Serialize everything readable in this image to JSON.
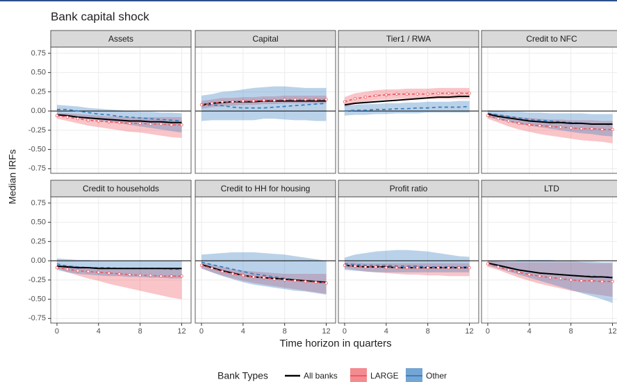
{
  "chart_data": {
    "type": "line",
    "title": "Bank capital shock",
    "xlabel": "Time horizon in quarters",
    "ylabel": "Median IRFs",
    "legend_title": "Bank Types",
    "grid": true,
    "hline": 0,
    "x": [
      0,
      1,
      2,
      3,
      4,
      5,
      6,
      7,
      8,
      9,
      10,
      11,
      12
    ],
    "xlim": [
      -0.6,
      12.9
    ],
    "xticks": [
      0,
      4,
      8,
      12
    ],
    "ylim": [
      -0.81,
      0.83
    ],
    "yticks": [
      {
        "value": -0.75,
        "label": "-0.75"
      },
      {
        "value": -0.5,
        "label": "-0.50"
      },
      {
        "value": -0.25,
        "label": "-0.25"
      },
      {
        "value": 0,
        "label": "0.00"
      },
      {
        "value": 0.25,
        "label": "0.25"
      },
      {
        "value": 0.5,
        "label": "0.50"
      },
      {
        "value": 0.75,
        "label": "0.75"
      }
    ],
    "series": [
      {
        "name": "All banks",
        "color": "#000000"
      },
      {
        "name": "LARGE",
        "color": "#ee5a62"
      },
      {
        "name": "Other",
        "color": "#3a7fc1"
      }
    ],
    "panels": [
      {
        "title": "Assets",
        "series": [
          {
            "values": [
              -0.05,
              -0.06,
              -0.08,
              -0.09,
              -0.1,
              -0.11,
              -0.12,
              -0.13,
              -0.13,
              -0.14,
              -0.14,
              -0.15,
              -0.15
            ]
          },
          {
            "values": [
              -0.06,
              -0.08,
              -0.1,
              -0.12,
              -0.13,
              -0.14,
              -0.15,
              -0.16,
              -0.16,
              -0.17,
              -0.17,
              -0.18,
              -0.18
            ],
            "lower": [
              -0.1,
              -0.13,
              -0.16,
              -0.19,
              -0.21,
              -0.23,
              -0.25,
              -0.27,
              -0.28,
              -0.3,
              -0.32,
              -0.34,
              -0.35
            ],
            "upper": [
              -0.02,
              -0.03,
              -0.04,
              -0.05,
              -0.06,
              -0.07,
              -0.07,
              -0.08,
              -0.08,
              -0.08,
              -0.08,
              -0.08,
              -0.08
            ]
          },
          {
            "values": [
              0.02,
              0.02,
              0,
              -0.02,
              -0.04,
              -0.05,
              -0.07,
              -0.08,
              -0.09,
              -0.1,
              -0.11,
              -0.12,
              -0.13
            ],
            "lower": [
              -0.05,
              -0.06,
              -0.08,
              -0.1,
              -0.12,
              -0.14,
              -0.16,
              -0.18,
              -0.2,
              -0.22,
              -0.24,
              -0.26,
              -0.28
            ],
            "upper": [
              0.08,
              0.07,
              0.06,
              0.04,
              0.03,
              0.02,
              0.01,
              0,
              -0.01,
              -0.01,
              -0.02,
              -0.02,
              -0.03
            ]
          }
        ]
      },
      {
        "title": "Capital",
        "series": [
          {
            "values": [
              0.08,
              0.1,
              0.11,
              0.12,
              0.12,
              0.12,
              0.13,
              0.13,
              0.13,
              0.13,
              0.13,
              0.13,
              0.13
            ]
          },
          {
            "values": [
              0.08,
              0.1,
              0.12,
              0.12,
              0.13,
              0.13,
              0.14,
              0.14,
              0.15,
              0.15,
              0.15,
              0.15,
              0.15
            ],
            "lower": [
              0.03,
              0.05,
              0.06,
              0.07,
              0.08,
              0.08,
              0.09,
              0.09,
              0.1,
              0.1,
              0.1,
              0.1,
              0.1
            ],
            "upper": [
              0.13,
              0.15,
              0.17,
              0.17,
              0.18,
              0.18,
              0.19,
              0.19,
              0.2,
              0.2,
              0.2,
              0.2,
              0.2
            ]
          },
          {
            "values": [
              0.07,
              0.08,
              0.07,
              0.05,
              0.04,
              0.04,
              0.04,
              0.05,
              0.06,
              0.07,
              0.08,
              0.09,
              0.1
            ],
            "lower": [
              -0.13,
              -0.12,
              -0.12,
              -0.12,
              -0.12,
              -0.12,
              -0.1,
              -0.1,
              -0.11,
              -0.12,
              -0.12,
              -0.13,
              -0.13
            ],
            "upper": [
              0.2,
              0.22,
              0.25,
              0.26,
              0.28,
              0.3,
              0.31,
              0.32,
              0.32,
              0.31,
              0.3,
              0.3,
              0.3
            ]
          }
        ]
      },
      {
        "title": "Tier1 / RWA",
        "series": [
          {
            "values": [
              0.08,
              0.1,
              0.11,
              0.12,
              0.13,
              0.14,
              0.15,
              0.16,
              0.17,
              0.18,
              0.18,
              0.19,
              0.19
            ]
          },
          {
            "values": [
              0.12,
              0.16,
              0.18,
              0.2,
              0.21,
              0.22,
              0.22,
              0.22,
              0.22,
              0.23,
              0.23,
              0.23,
              0.23
            ],
            "lower": [
              0.05,
              0.09,
              0.12,
              0.14,
              0.15,
              0.16,
              0.16,
              0.16,
              0.16,
              0.16,
              0.16,
              0.16,
              0.16
            ],
            "upper": [
              0.18,
              0.23,
              0.25,
              0.27,
              0.28,
              0.28,
              0.29,
              0.29,
              0.29,
              0.3,
              0.3,
              0.3,
              0.3
            ]
          },
          {
            "values": [
              0,
              0.01,
              0.01,
              0.02,
              0.02,
              0.03,
              0.03,
              0.04,
              0.04,
              0.05,
              0.05,
              0.05,
              0.06
            ],
            "lower": [
              -0.06,
              -0.05,
              -0.05,
              -0.04,
              -0.04,
              -0.03,
              -0.03,
              -0.03,
              -0.02,
              -0.02,
              -0.02,
              -0.02,
              -0.02
            ],
            "upper": [
              0.07,
              0.08,
              0.09,
              0.09,
              0.1,
              0.1,
              0.11,
              0.11,
              0.12,
              0.12,
              0.12,
              0.13,
              0.13
            ]
          }
        ]
      },
      {
        "title": "Credit to NFC",
        "series": [
          {
            "values": [
              -0.04,
              -0.07,
              -0.09,
              -0.11,
              -0.13,
              -0.14,
              -0.15,
              -0.15,
              -0.16,
              -0.16,
              -0.17,
              -0.17,
              -0.17
            ]
          },
          {
            "values": [
              -0.06,
              -0.1,
              -0.13,
              -0.16,
              -0.18,
              -0.19,
              -0.2,
              -0.21,
              -0.22,
              -0.23,
              -0.23,
              -0.24,
              -0.24
            ],
            "lower": [
              -0.1,
              -0.15,
              -0.2,
              -0.24,
              -0.27,
              -0.3,
              -0.32,
              -0.34,
              -0.36,
              -0.38,
              -0.39,
              -0.4,
              -0.42
            ],
            "upper": [
              -0.02,
              -0.04,
              -0.06,
              -0.08,
              -0.09,
              -0.1,
              -0.11,
              -0.11,
              -0.12,
              -0.12,
              -0.12,
              -0.13,
              -0.13
            ]
          },
          {
            "values": [
              -0.03,
              -0.05,
              -0.07,
              -0.09,
              -0.11,
              -0.12,
              -0.13,
              -0.14,
              -0.15,
              -0.16,
              -0.17,
              -0.17,
              -0.18
            ],
            "lower": [
              -0.08,
              -0.11,
              -0.14,
              -0.17,
              -0.19,
              -0.21,
              -0.23,
              -0.25,
              -0.27,
              -0.29,
              -0.3,
              -0.32,
              -0.33
            ],
            "upper": [
              0.01,
              0,
              -0.01,
              -0.01,
              -0.02,
              -0.02,
              -0.03,
              -0.03,
              -0.03,
              -0.03,
              -0.04,
              -0.04,
              -0.04
            ]
          }
        ]
      },
      {
        "title": "Credit to households",
        "series": [
          {
            "values": [
              -0.07,
              -0.08,
              -0.09,
              -0.09,
              -0.1,
              -0.1,
              -0.1,
              -0.1,
              -0.1,
              -0.1,
              -0.1,
              -0.1,
              -0.1
            ]
          },
          {
            "values": [
              -0.09,
              -0.11,
              -0.13,
              -0.14,
              -0.15,
              -0.16,
              -0.17,
              -0.18,
              -0.19,
              -0.19,
              -0.2,
              -0.2,
              -0.2
            ],
            "lower": [
              -0.1,
              -0.15,
              -0.19,
              -0.23,
              -0.26,
              -0.3,
              -0.33,
              -0.36,
              -0.39,
              -0.42,
              -0.45,
              -0.48,
              -0.5
            ],
            "upper": [
              -0.05,
              -0.06,
              -0.07,
              -0.08,
              -0.08,
              -0.09,
              -0.09,
              -0.1,
              -0.1,
              -0.1,
              -0.1,
              -0.11,
              -0.11
            ]
          },
          {
            "values": [
              -0.04,
              -0.07,
              -0.08,
              -0.09,
              -0.09,
              -0.09,
              -0.1,
              -0.1,
              -0.1,
              -0.1,
              -0.1,
              -0.11,
              -0.11
            ],
            "lower": [
              -0.12,
              -0.15,
              -0.17,
              -0.18,
              -0.19,
              -0.2,
              -0.2,
              -0.21,
              -0.21,
              -0.22,
              -0.22,
              -0.23,
              -0.23
            ],
            "upper": [
              0.03,
              0.02,
              0.01,
              0.01,
              0,
              0,
              0,
              0,
              0,
              0,
              0,
              0,
              0
            ]
          }
        ]
      },
      {
        "title": "Credit to HH for housing",
        "series": [
          {
            "values": [
              -0.05,
              -0.09,
              -0.13,
              -0.16,
              -0.19,
              -0.21,
              -0.22,
              -0.23,
              -0.24,
              -0.25,
              -0.26,
              -0.27,
              -0.28
            ]
          },
          {
            "values": [
              -0.06,
              -0.1,
              -0.14,
              -0.17,
              -0.19,
              -0.21,
              -0.22,
              -0.24,
              -0.25,
              -0.26,
              -0.27,
              -0.28,
              -0.29
            ],
            "lower": [
              -0.1,
              -0.15,
              -0.19,
              -0.23,
              -0.26,
              -0.29,
              -0.31,
              -0.33,
              -0.35,
              -0.37,
              -0.39,
              -0.41,
              -0.43
            ],
            "upper": [
              -0.02,
              -0.05,
              -0.08,
              -0.11,
              -0.13,
              -0.14,
              -0.15,
              -0.16,
              -0.17,
              -0.17,
              -0.17,
              -0.17,
              -0.17
            ]
          },
          {
            "values": [
              -0.02,
              -0.05,
              -0.08,
              -0.11,
              -0.14,
              -0.17,
              -0.19,
              -0.21,
              -0.23,
              -0.25,
              -0.27,
              -0.28,
              -0.29
            ],
            "lower": [
              -0.1,
              -0.15,
              -0.2,
              -0.24,
              -0.28,
              -0.31,
              -0.33,
              -0.35,
              -0.37,
              -0.39,
              -0.4,
              -0.42,
              -0.44
            ],
            "upper": [
              0.08,
              0.09,
              0.1,
              0.11,
              0.11,
              0.11,
              0.1,
              0.09,
              0.08,
              0.06,
              0.04,
              0.02,
              0
            ]
          }
        ]
      },
      {
        "title": "Profit ratio",
        "series": [
          {
            "values": [
              -0.06,
              -0.07,
              -0.08,
              -0.08,
              -0.08,
              -0.09,
              -0.09,
              -0.09,
              -0.09,
              -0.09,
              -0.09,
              -0.09,
              -0.09
            ]
          },
          {
            "values": [
              -0.06,
              -0.07,
              -0.08,
              -0.08,
              -0.09,
              -0.09,
              -0.09,
              -0.09,
              -0.09,
              -0.09,
              -0.09,
              -0.09,
              -0.09
            ],
            "lower": [
              -0.1,
              -0.12,
              -0.14,
              -0.15,
              -0.16,
              -0.17,
              -0.18,
              -0.18,
              -0.19,
              -0.19,
              -0.2,
              -0.2,
              -0.2
            ],
            "upper": [
              -0.02,
              -0.02,
              -0.03,
              -0.03,
              -0.03,
              -0.03,
              -0.03,
              -0.03,
              -0.03,
              -0.03,
              -0.03,
              -0.03,
              -0.03
            ]
          },
          {
            "values": [
              -0.04,
              -0.05,
              -0.06,
              -0.06,
              -0.06,
              -0.07,
              -0.07,
              -0.07,
              -0.08,
              -0.08,
              -0.08,
              -0.08,
              -0.08
            ],
            "lower": [
              -0.12,
              -0.13,
              -0.14,
              -0.15,
              -0.15,
              -0.15,
              -0.15,
              -0.15,
              -0.15,
              -0.15,
              -0.15,
              -0.15,
              -0.15
            ],
            "upper": [
              0.04,
              0.08,
              0.1,
              0.12,
              0.13,
              0.14,
              0.14,
              0.13,
              0.12,
              0.1,
              0.08,
              0.06,
              0.05
            ]
          }
        ]
      },
      {
        "title": "LTD",
        "series": [
          {
            "values": [
              -0.03,
              -0.06,
              -0.09,
              -0.12,
              -0.14,
              -0.16,
              -0.17,
              -0.18,
              -0.19,
              -0.2,
              -0.21,
              -0.21,
              -0.22
            ]
          },
          {
            "values": [
              -0.04,
              -0.08,
              -0.12,
              -0.15,
              -0.18,
              -0.2,
              -0.22,
              -0.23,
              -0.25,
              -0.26,
              -0.26,
              -0.27,
              -0.27
            ],
            "lower": [
              -0.08,
              -0.12,
              -0.17,
              -0.22,
              -0.26,
              -0.3,
              -0.33,
              -0.36,
              -0.39,
              -0.41,
              -0.43,
              -0.45,
              -0.47
            ],
            "upper": [
              0,
              -0.01,
              -0.02,
              -0.02,
              -0.02,
              -0.02,
              -0.02,
              -0.02,
              -0.02,
              -0.02,
              -0.03,
              -0.03,
              -0.03
            ]
          },
          {
            "values": [
              -0.03,
              -0.06,
              -0.09,
              -0.12,
              -0.14,
              -0.16,
              -0.17,
              -0.18,
              -0.19,
              -0.2,
              -0.2,
              -0.21,
              -0.21
            ],
            "lower": [
              -0.06,
              -0.1,
              -0.14,
              -0.18,
              -0.22,
              -0.26,
              -0.3,
              -0.34,
              -0.38,
              -0.42,
              -0.46,
              -0.5,
              -0.55
            ],
            "upper": [
              0,
              0,
              0,
              0.01,
              0.01,
              0.01,
              0.01,
              0,
              0,
              -0.01,
              -0.01,
              -0.02,
              -0.02
            ]
          }
        ]
      }
    ]
  }
}
